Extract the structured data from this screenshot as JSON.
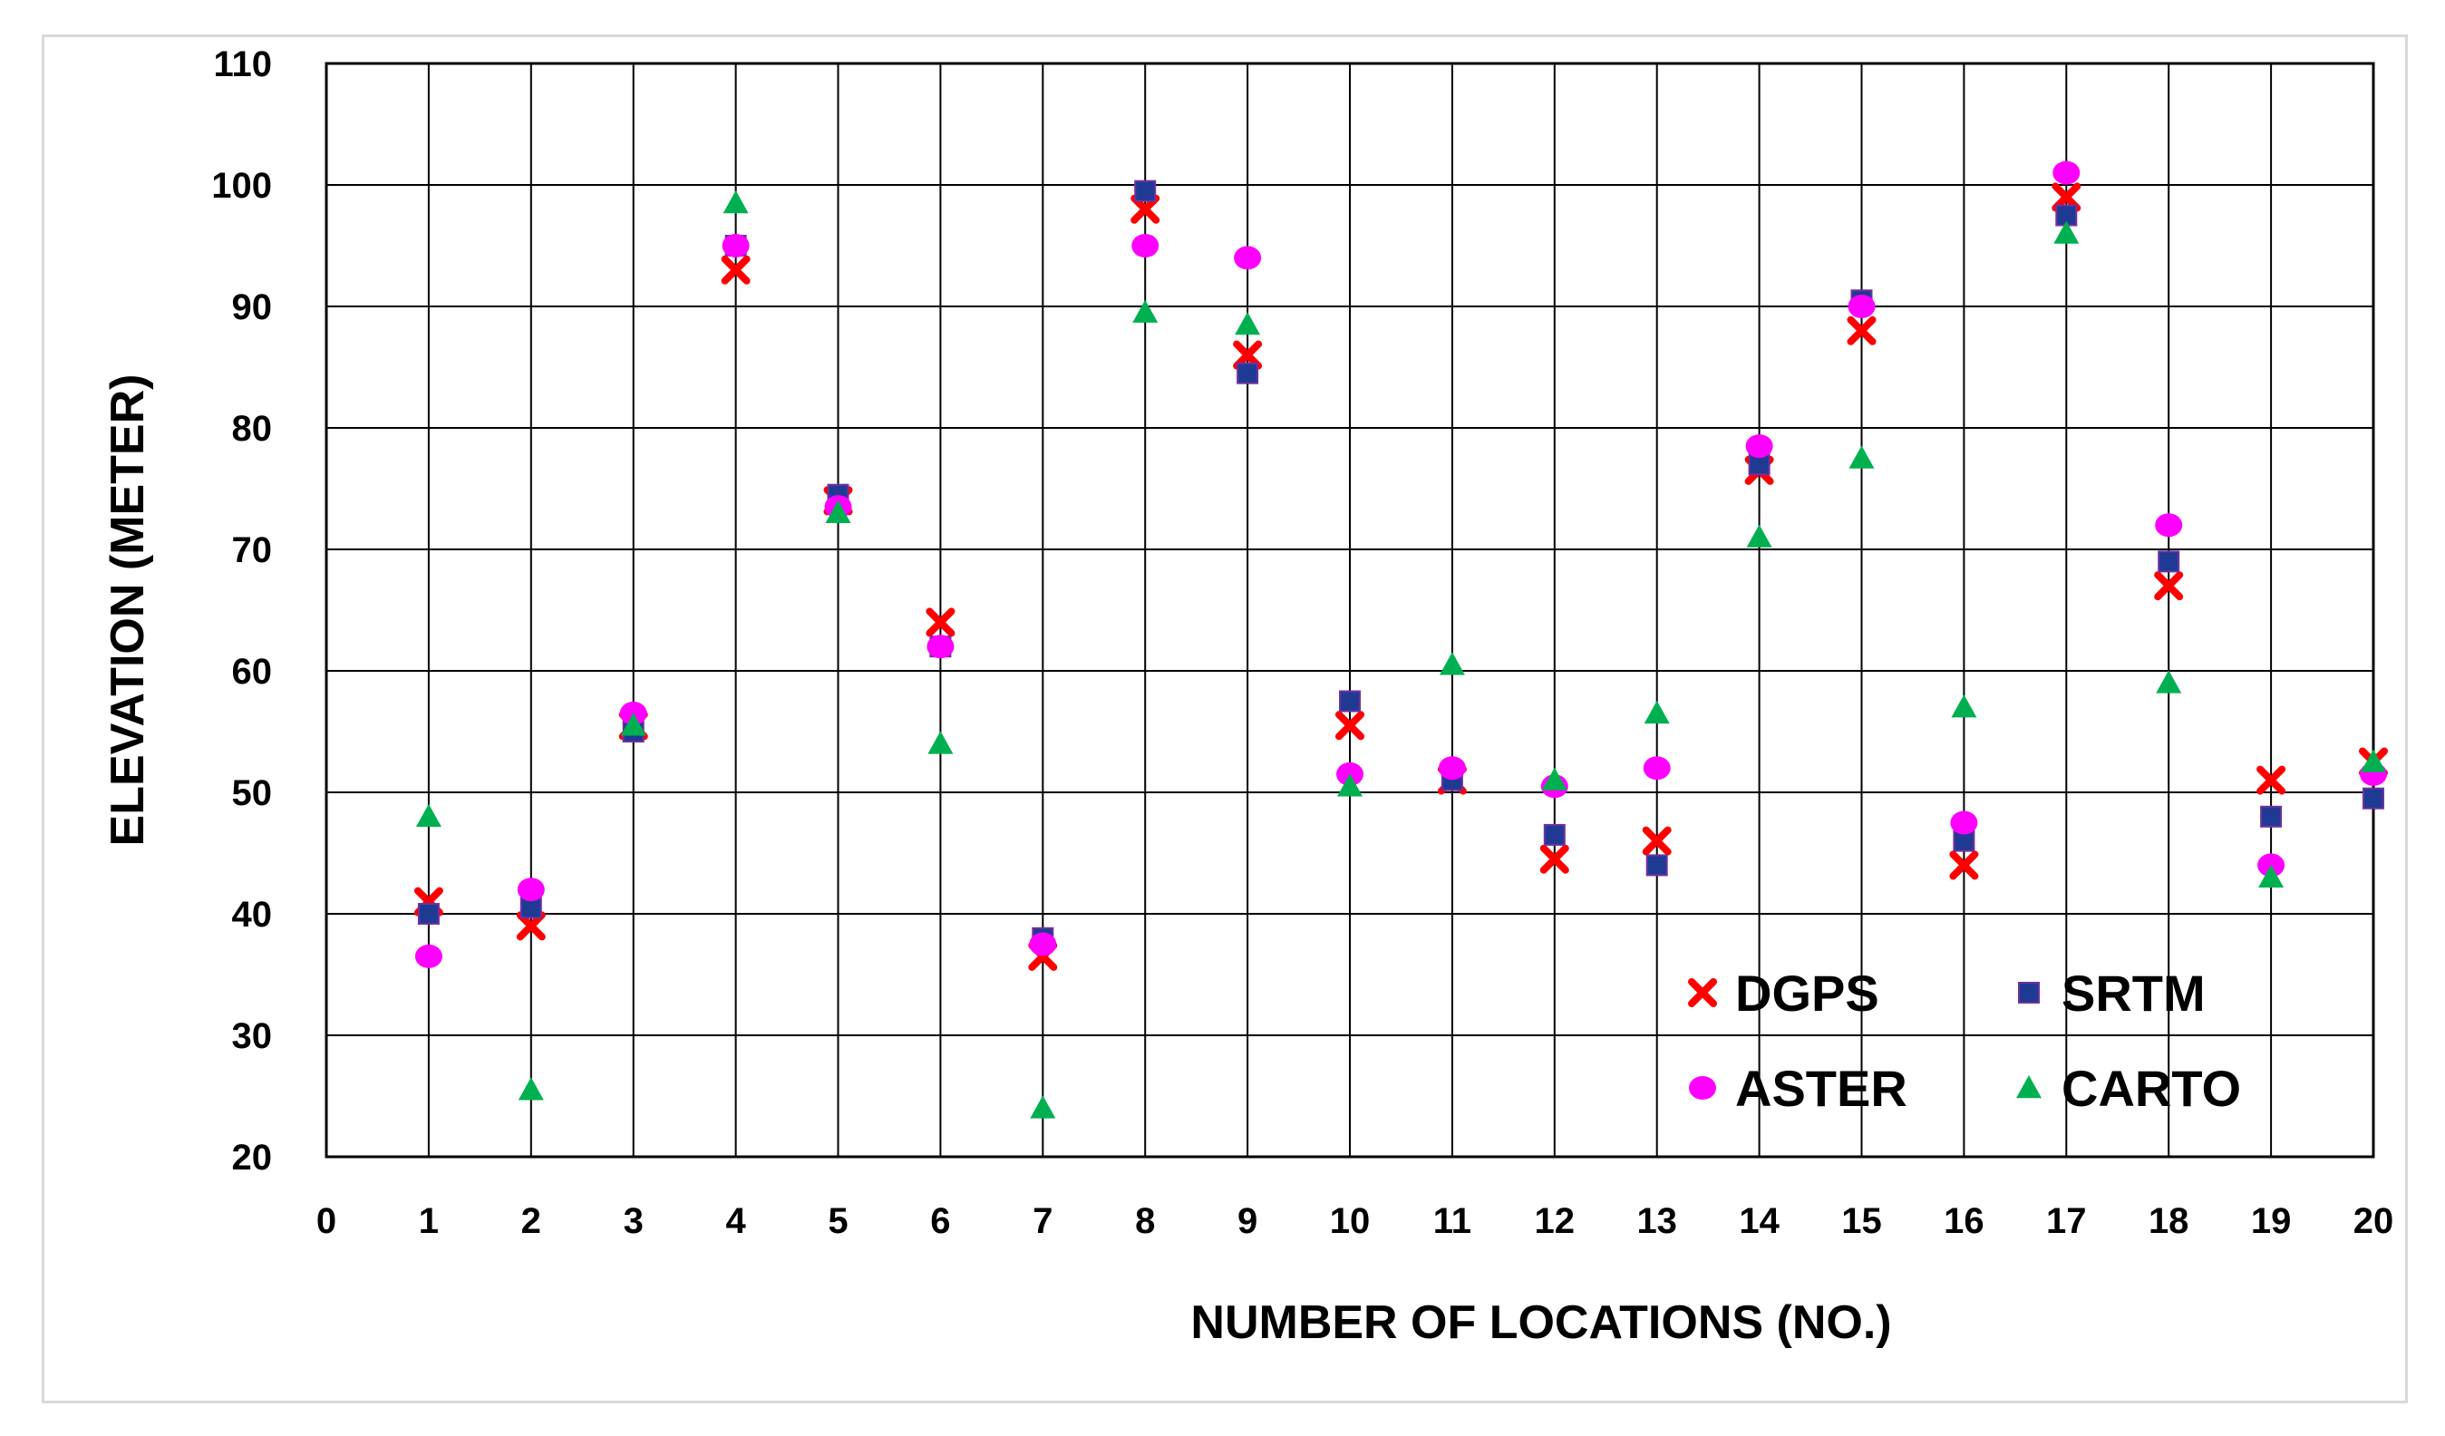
{
  "chart_data": {
    "type": "scatter",
    "title": "",
    "xlabel": "NUMBER OF LOCATIONS (NO.)",
    "ylabel": "ELEVATION (METER)",
    "xlim": [
      0,
      20
    ],
    "ylim": [
      20,
      110
    ],
    "x_ticks": [
      "0",
      "1",
      "2",
      "3",
      "4",
      "5",
      "6",
      "7",
      "8",
      "9",
      "10",
      "11",
      "12",
      "13",
      "14",
      "15",
      "16",
      "17",
      "18",
      "19",
      "20"
    ],
    "y_ticks": [
      "20",
      "30",
      "40",
      "50",
      "60",
      "70",
      "80",
      "90",
      "100",
      "110"
    ],
    "grid": true,
    "legend_position": "bottom-right",
    "x": [
      1,
      2,
      3,
      4,
      5,
      6,
      7,
      8,
      9,
      10,
      11,
      12,
      13,
      14,
      15,
      16,
      17,
      18,
      19,
      20
    ],
    "series": [
      {
        "name": "DGPS",
        "marker": "x",
        "color": "#ff0000",
        "values": [
          41.0,
          39.0,
          55.5,
          93.0,
          74.0,
          64.0,
          36.5,
          98.0,
          86.0,
          55.5,
          51.0,
          44.5,
          46.0,
          76.5,
          88.0,
          44.0,
          99.0,
          67.0,
          51.0,
          52.5
        ]
      },
      {
        "name": "SRTM",
        "marker": "square",
        "color": "#1f3a93",
        "values": [
          40.0,
          40.5,
          55.0,
          95.0,
          74.5,
          62.0,
          38.0,
          99.5,
          84.5,
          57.5,
          51.0,
          46.5,
          44.0,
          77.0,
          90.5,
          46.0,
          97.5,
          69.0,
          48.0,
          49.5
        ]
      },
      {
        "name": "ASTER",
        "marker": "circle",
        "color": "#ff00ff",
        "values": [
          36.5,
          42.0,
          56.5,
          95.0,
          73.5,
          62.0,
          37.5,
          95.0,
          94.0,
          51.5,
          52.0,
          50.5,
          52.0,
          78.5,
          90.0,
          47.5,
          101.0,
          72.0,
          44.0,
          51.5
        ]
      },
      {
        "name": "CARTO",
        "marker": "triangle",
        "color": "#00b050",
        "values": [
          48.0,
          25.5,
          55.5,
          98.5,
          73.0,
          54.0,
          24.0,
          89.5,
          88.5,
          50.5,
          60.5,
          51.0,
          56.5,
          71.0,
          77.5,
          57.0,
          96.0,
          59.0,
          43.0,
          52.5
        ]
      }
    ]
  }
}
